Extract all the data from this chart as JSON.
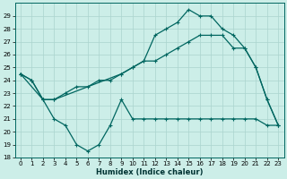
{
  "xlabel": "Humidex (Indice chaleur)",
  "background_color": "#cceee8",
  "grid_color": "#aad4ce",
  "line_color": "#006660",
  "xlim": [
    -0.5,
    23.5
  ],
  "ylim": [
    18,
    30
  ],
  "yticks": [
    18,
    19,
    20,
    21,
    22,
    23,
    24,
    25,
    26,
    27,
    28,
    29
  ],
  "xticks": [
    0,
    1,
    2,
    3,
    4,
    5,
    6,
    7,
    8,
    9,
    10,
    11,
    12,
    13,
    14,
    15,
    16,
    17,
    18,
    19,
    20,
    21,
    22,
    23
  ],
  "line1_x": [
    0,
    1,
    2,
    3,
    4,
    5,
    6,
    7,
    8,
    9,
    10,
    11,
    12,
    13,
    14,
    15,
    16,
    17,
    18,
    19,
    20,
    21,
    22,
    23
  ],
  "line1_y": [
    24.5,
    24.0,
    22.5,
    22.5,
    23.0,
    23.5,
    23.5,
    24.0,
    24.0,
    24.5,
    25.0,
    25.5,
    25.5,
    26.0,
    26.5,
    27.0,
    27.5,
    27.5,
    27.5,
    26.5,
    26.5,
    25.0,
    22.5,
    20.5
  ],
  "line2_x": [
    0,
    1,
    2,
    3,
    4,
    5,
    6,
    7,
    8,
    9,
    10,
    11,
    12,
    13,
    14,
    15,
    16,
    17,
    18,
    19,
    20,
    21,
    22,
    23
  ],
  "line2_y": [
    24.5,
    24.0,
    22.5,
    21.0,
    20.5,
    19.0,
    18.5,
    19.0,
    20.5,
    22.5,
    21.0,
    21.0,
    21.0,
    21.0,
    21.0,
    21.0,
    21.0,
    21.0,
    21.0,
    21.0,
    21.0,
    21.0,
    20.5,
    20.5
  ],
  "line3_x": [
    0,
    2,
    3,
    9,
    10,
    11,
    12,
    13,
    14,
    15,
    16,
    17,
    18,
    19,
    20,
    21,
    22,
    23
  ],
  "line3_y": [
    24.5,
    22.5,
    22.5,
    24.5,
    25.0,
    25.5,
    27.5,
    28.0,
    28.5,
    29.5,
    29.0,
    29.0,
    28.0,
    27.5,
    26.5,
    25.0,
    22.5,
    20.5
  ],
  "marker_size": 3,
  "linewidth": 0.9,
  "tick_labelsize": 5,
  "xlabel_fontsize": 6
}
